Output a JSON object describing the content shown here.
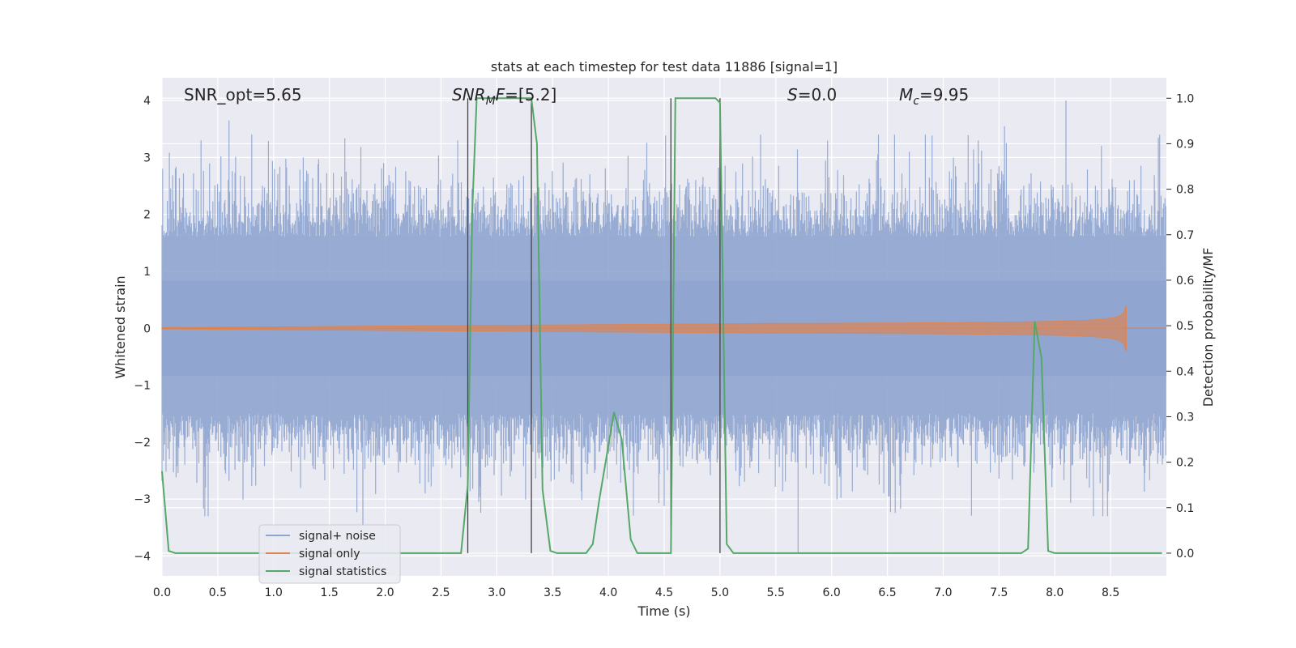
{
  "chart_data": {
    "type": "line",
    "title": "stats at each timestep for test data 11886 [signal=1]",
    "xlabel": "Time (s)",
    "ylabel": "Whitened strain",
    "ylabel_right": "Detection probability/MF",
    "xlim": [
      0.0,
      9.0
    ],
    "ylim": [
      -4.35,
      4.4
    ],
    "ylim_right": [
      -0.05,
      1.045
    ],
    "x_ticks": [
      "0.0",
      "0.5",
      "1.0",
      "1.5",
      "2.0",
      "2.5",
      "3.0",
      "3.5",
      "4.0",
      "4.5",
      "5.0",
      "5.5",
      "6.0",
      "6.5",
      "7.0",
      "7.5",
      "8.0",
      "8.5"
    ],
    "y_ticks": [
      "4",
      "3",
      "2",
      "1",
      "0",
      "−1",
      "−2",
      "−3",
      "−4"
    ],
    "y_ticks_right": [
      "1.0",
      "0.9",
      "0.8",
      "0.7",
      "0.6",
      "0.5",
      "0.4",
      "0.3",
      "0.2",
      "0.1",
      "0.0"
    ],
    "grid": true,
    "legend_position": "lower-left",
    "annotations": {
      "snr_opt": "SNR_opt=5.65",
      "snr_mf": "=[5.2]",
      "snr_mf_symbol": "SNR",
      "snr_mf_sub": "M",
      "snr_mf_f": "F",
      "s_symbol": "S",
      "s_value": "=0.0",
      "mc_symbol": "M",
      "mc_sub": "c",
      "mc_value": "=9.95"
    },
    "vlines_x": [
      2.74,
      3.31,
      4.56,
      5.0
    ],
    "series": [
      {
        "name": "signal+ noise",
        "color": "#8fa5cf",
        "style": "noise-band",
        "envelope_y": [
          -2.0,
          2.0
        ],
        "notable_peaks": [
          [
            0.35,
            3.3
          ],
          [
            0.6,
            3.65
          ],
          [
            2.65,
            3.3
          ],
          [
            7.55,
            3.55
          ],
          [
            8.1,
            4.0
          ],
          [
            5.7,
            -3.95
          ],
          [
            1.8,
            -3.45
          ]
        ]
      },
      {
        "name": "signal only",
        "color": "#dd8452",
        "style": "chirp",
        "t_start": 5.5,
        "t_merge": 8.64,
        "peak_amplitude": 0.72
      },
      {
        "name": "signal statistics",
        "color": "#55a868",
        "axis": "right",
        "x": [
          0.0,
          0.06,
          0.12,
          2.68,
          2.74,
          2.78,
          2.82,
          3.31,
          3.36,
          3.41,
          3.48,
          3.54,
          3.8,
          3.86,
          3.92,
          4.05,
          4.12,
          4.2,
          4.26,
          4.56,
          4.6,
          4.66,
          4.96,
          5.0,
          5.06,
          5.12,
          7.7,
          7.76,
          7.82,
          7.88,
          7.94,
          8.0,
          8.96
        ],
        "y": [
          0.18,
          0.005,
          0.0,
          0.0,
          0.15,
          0.75,
          1.0,
          1.0,
          0.9,
          0.14,
          0.005,
          0.0,
          0.0,
          0.02,
          0.12,
          0.31,
          0.25,
          0.03,
          0.0,
          0.0,
          1.0,
          1.0,
          1.0,
          0.99,
          0.02,
          0.0,
          0.0,
          0.01,
          0.51,
          0.43,
          0.005,
          0.0,
          0.0
        ]
      }
    ]
  }
}
